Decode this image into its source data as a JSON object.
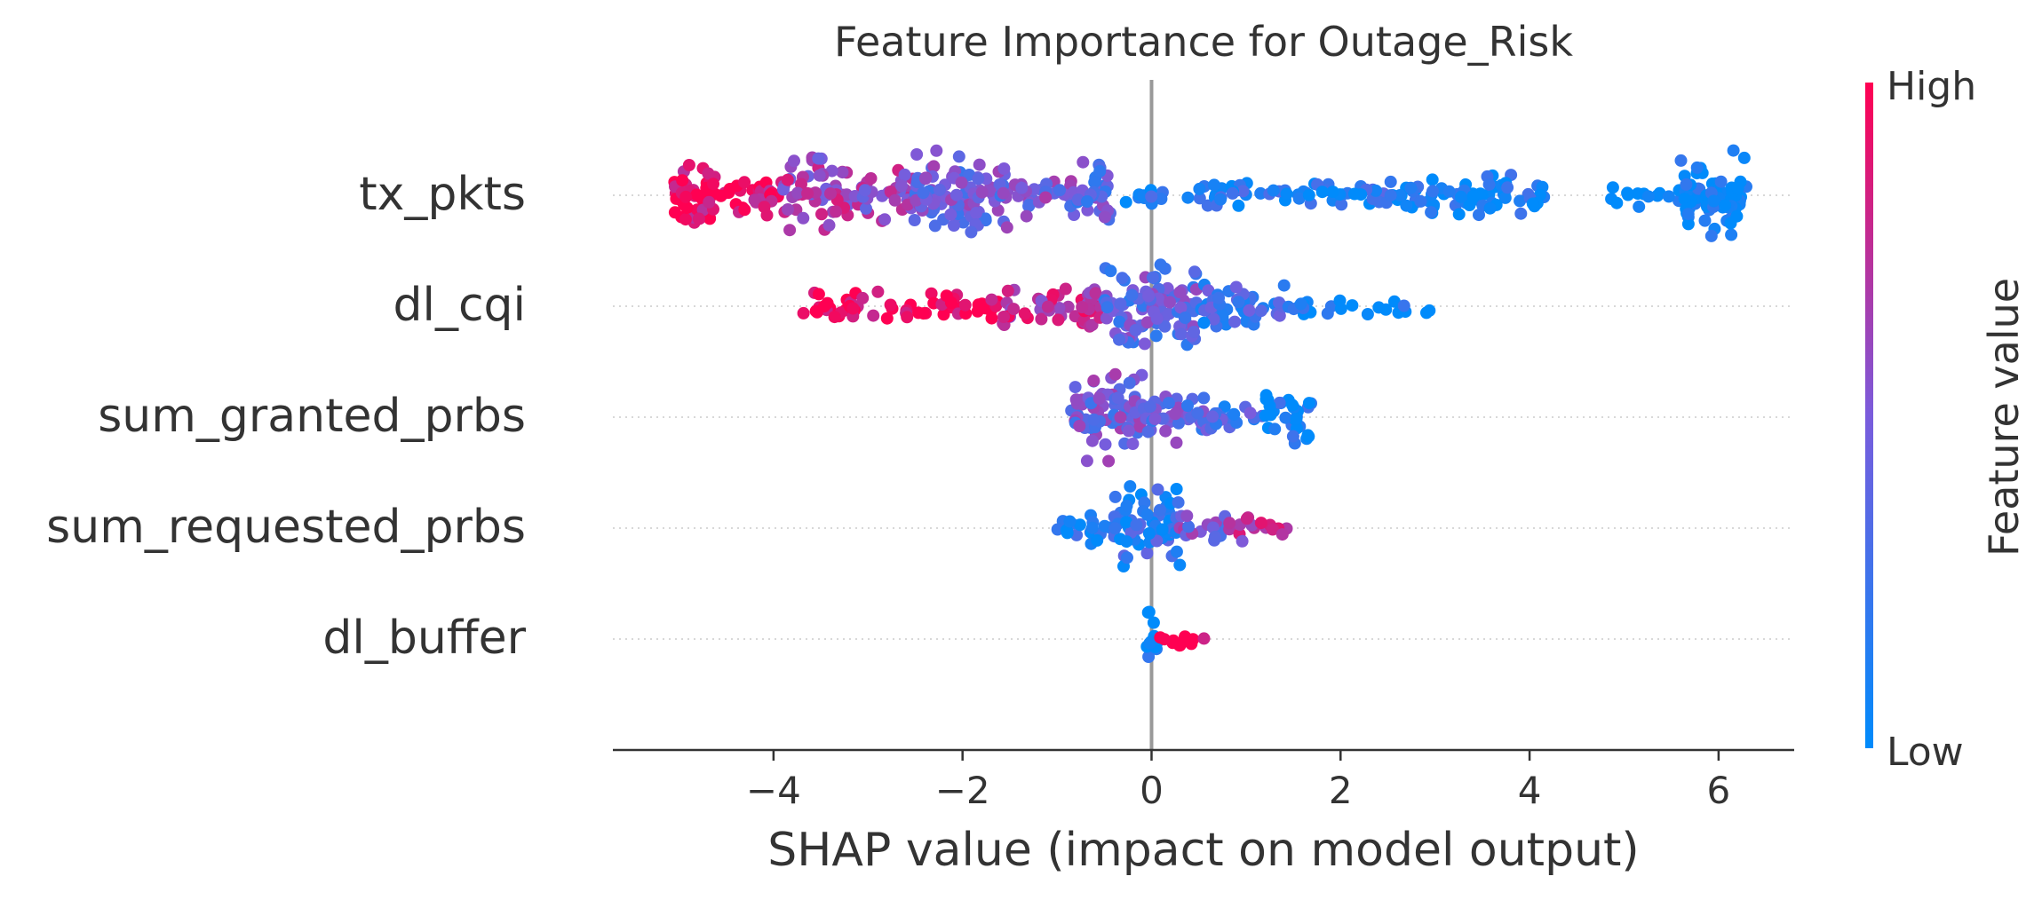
{
  "chart_data": {
    "type": "scatter",
    "subtype": "beeswarm",
    "title": "Feature Importance for Outage_Risk",
    "xlabel": "SHAP value (impact on model output)",
    "xlim": [
      -5.7,
      6.8
    ],
    "xticks": [
      -4,
      -2,
      0,
      2,
      4,
      6
    ],
    "xtick_labels": [
      "−4",
      "−2",
      "0",
      "2",
      "4",
      "6"
    ],
    "zero_line": true,
    "grid": false,
    "colorbar": {
      "label": "Feature value",
      "high_label": "High",
      "low_label": "Low",
      "high_color": "#ff0052",
      "low_color": "#008bfb"
    },
    "features": [
      {
        "name": "tx_pkts",
        "segments": [
          {
            "x_min": -5.1,
            "x_max": -4.5,
            "density": 0.85,
            "value": 0.95
          },
          {
            "x_min": -4.5,
            "x_max": -3.9,
            "density": 0.45,
            "value": 0.9
          },
          {
            "x_min": -3.9,
            "x_max": -3.2,
            "density": 0.85,
            "value": 0.65
          },
          {
            "x_min": -3.2,
            "x_max": -2.5,
            "density": 0.55,
            "value": 0.6
          },
          {
            "x_min": -2.5,
            "x_max": -1.5,
            "density": 1.0,
            "value": 0.45
          },
          {
            "x_min": -1.5,
            "x_max": -0.8,
            "density": 0.45,
            "value": 0.5
          },
          {
            "x_min": -0.8,
            "x_max": -0.4,
            "density": 0.75,
            "value": 0.4
          },
          {
            "x_min": -0.4,
            "x_max": 2.5,
            "density": 0.25,
            "value": 0.15
          },
          {
            "x_min": 2.5,
            "x_max": 4.2,
            "density": 0.45,
            "value": 0.05
          },
          {
            "x_min": 4.8,
            "x_max": 5.6,
            "density": 0.2,
            "value": 0.02
          },
          {
            "x_min": 5.6,
            "x_max": 6.3,
            "density": 1.0,
            "value": 0.0
          }
        ]
      },
      {
        "name": "dl_cqi",
        "segments": [
          {
            "x_min": -3.7,
            "x_max": -1.6,
            "density": 0.3,
            "value": 1.0
          },
          {
            "x_min": -1.6,
            "x_max": -0.5,
            "density": 0.5,
            "value": 0.75
          },
          {
            "x_min": -0.5,
            "x_max": 0.5,
            "density": 1.0,
            "value": 0.4
          },
          {
            "x_min": 0.5,
            "x_max": 1.5,
            "density": 0.5,
            "value": 0.25
          },
          {
            "x_min": 1.5,
            "x_max": 3.0,
            "density": 0.15,
            "value": 0.05
          }
        ]
      },
      {
        "name": "sum_granted_prbs",
        "segments": [
          {
            "x_min": -0.85,
            "x_max": -0.1,
            "density": 1.0,
            "value": 0.45
          },
          {
            "x_min": -0.1,
            "x_max": 0.6,
            "density": 0.6,
            "value": 0.4
          },
          {
            "x_min": 0.6,
            "x_max": 1.2,
            "density": 0.35,
            "value": 0.3
          },
          {
            "x_min": 1.2,
            "x_max": 1.7,
            "density": 0.65,
            "value": 0.05
          }
        ]
      },
      {
        "name": "sum_requested_prbs",
        "segments": [
          {
            "x_min": -1.0,
            "x_max": -0.4,
            "density": 0.35,
            "value": 0.1
          },
          {
            "x_min": -0.4,
            "x_max": 0.3,
            "density": 1.0,
            "value": 0.2
          },
          {
            "x_min": 0.3,
            "x_max": 0.8,
            "density": 0.35,
            "value": 0.5
          },
          {
            "x_min": 0.8,
            "x_max": 1.45,
            "density": 0.25,
            "value": 0.7
          }
        ]
      },
      {
        "name": "dl_buffer",
        "segments": [
          {
            "x_min": -0.08,
            "x_max": 0.06,
            "density": 1.0,
            "value": 0.0
          },
          {
            "x_min": 0.06,
            "x_max": 0.62,
            "density": 0.2,
            "value": 1.0
          }
        ]
      }
    ]
  }
}
